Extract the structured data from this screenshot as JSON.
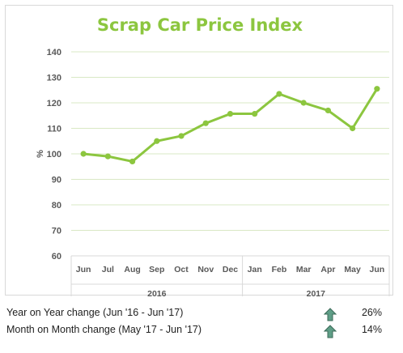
{
  "chart_data": {
    "type": "line",
    "title": "Scrap Car Price Index",
    "ylabel": "%",
    "ylim": [
      60,
      140
    ],
    "yticks": [
      60,
      70,
      80,
      90,
      100,
      110,
      120,
      130,
      140
    ],
    "categories": [
      "Jun",
      "Jul",
      "Aug",
      "Sep",
      "Oct",
      "Nov",
      "Dec",
      "Jan",
      "Feb",
      "Mar",
      "Apr",
      "May",
      "Jun"
    ],
    "groups": [
      {
        "label": "2016",
        "count": 7
      },
      {
        "label": "2017",
        "count": 6
      }
    ],
    "series": [
      {
        "values": [
          100,
          99,
          97,
          105,
          107,
          112,
          115.7,
          115.7,
          123.5,
          120,
          117,
          110,
          125.5
        ]
      }
    ],
    "grid": true,
    "color": "#8cc63f"
  },
  "stats": [
    {
      "label": "Year on Year change (Jun '16 - Jun '17)",
      "value": "26%",
      "icon": "up-arrow-icon"
    },
    {
      "label": "Month on Month change (May '17 - Jun '17)",
      "value": "14%",
      "icon": "up-arrow-icon"
    }
  ],
  "colors": {
    "arrow": "#5f9e87",
    "arrow_stroke": "#3d6b59",
    "gridline": "#d9e8c4"
  }
}
